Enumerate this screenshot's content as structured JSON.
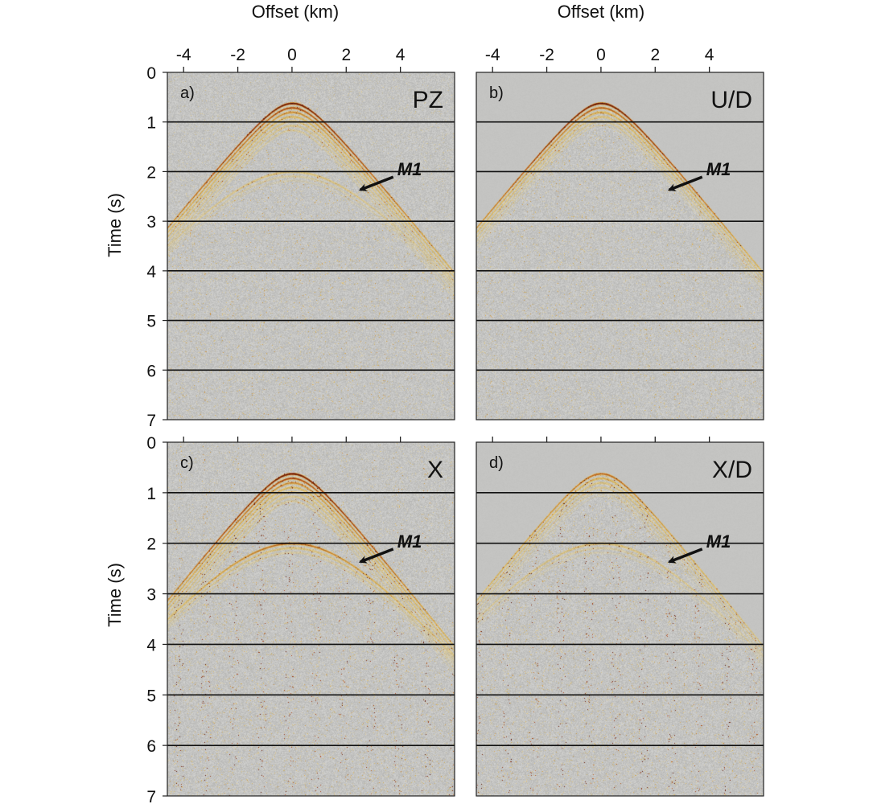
{
  "colors": {
    "background": "#c4c4c2",
    "wavelet_dark": "#5a1606",
    "wavelet_mid": "#a8431b",
    "wavelet_light": "#e0b13c",
    "wavelet_pale": "#f0d26a",
    "timing_lines": "#111111"
  },
  "chart_data": [
    {
      "type": "heatmap",
      "panel": "a)",
      "component": "PZ",
      "xlabel": "Offset (km)",
      "ylabel": "Time (s)",
      "x_ticks": [
        -4,
        -2,
        0,
        2,
        4
      ],
      "x_tick_labels": [
        "-4",
        "-2",
        "0",
        "2",
        "4"
      ],
      "y_ticks": [
        0,
        1,
        2,
        3,
        4,
        5,
        6,
        7
      ],
      "y_tick_labels": [
        "0",
        "1",
        "2",
        "3",
        "4",
        "5",
        "6",
        "7"
      ],
      "xlim": [
        -4.6,
        6.0
      ],
      "ylim": [
        7,
        0
      ],
      "x_axis_position": "top",
      "horizontal_lines_at": [
        1,
        2,
        3,
        4,
        5,
        6
      ],
      "events": [
        {
          "apex_offset": 0.0,
          "apex_time": 0.62,
          "velocity_km_s": 1.5,
          "strength": "strong"
        },
        {
          "apex_offset": 0.0,
          "apex_time": 2.0,
          "velocity_km_s": 1.6,
          "strength": "weak"
        }
      ],
      "annotation": {
        "text": "M1",
        "arrow_target": [
          2.4,
          2.4
        ]
      }
    },
    {
      "type": "heatmap",
      "panel": "b)",
      "component": "U/D",
      "xlabel": "Offset (km)",
      "ylabel": "",
      "x_ticks": [
        -4,
        -2,
        0,
        2,
        4
      ],
      "x_tick_labels": [
        "-4",
        "-2",
        "0",
        "2",
        "4"
      ],
      "xlim": [
        -4.6,
        6.0
      ],
      "ylim": [
        7,
        0
      ],
      "x_axis_position": "top",
      "horizontal_lines_at": [
        1,
        2,
        3,
        4,
        5,
        6
      ],
      "events": [
        {
          "apex_offset": 0.0,
          "apex_time": 0.62,
          "velocity_km_s": 1.5,
          "strength": "strong"
        }
      ],
      "annotation": {
        "text": "M1",
        "arrow_target": [
          2.4,
          2.4
        ]
      }
    },
    {
      "type": "heatmap",
      "panel": "c)",
      "component": "X",
      "xlabel": "",
      "ylabel": "Time (s)",
      "y_ticks": [
        0,
        1,
        2,
        3,
        4,
        5,
        6,
        7
      ],
      "y_tick_labels": [
        "0",
        "1",
        "2",
        "3",
        "4",
        "5",
        "6",
        "7"
      ],
      "xlim": [
        -4.6,
        6.0
      ],
      "ylim": [
        7,
        0
      ],
      "horizontal_lines_at": [
        1,
        2,
        3,
        4,
        5,
        6
      ],
      "events": [
        {
          "apex_offset": 0.0,
          "apex_time": 0.62,
          "velocity_km_s": 1.5,
          "strength": "strong"
        },
        {
          "apex_offset": 0.0,
          "apex_time": 2.0,
          "velocity_km_s": 1.6,
          "strength": "medium"
        }
      ],
      "annotation": {
        "text": "M1",
        "arrow_target": [
          2.4,
          2.4
        ]
      }
    },
    {
      "type": "heatmap",
      "panel": "d)",
      "component": "X/D",
      "xlabel": "",
      "ylabel": "",
      "xlim": [
        -4.6,
        6.0
      ],
      "ylim": [
        7,
        0
      ],
      "horizontal_lines_at": [
        1,
        2,
        3,
        4,
        5,
        6
      ],
      "events": [
        {
          "apex_offset": 0.0,
          "apex_time": 0.62,
          "velocity_km_s": 1.5,
          "strength": "medium"
        },
        {
          "apex_offset": 0.0,
          "apex_time": 2.0,
          "velocity_km_s": 1.6,
          "strength": "weak"
        }
      ],
      "annotation": {
        "text": "M1",
        "arrow_target": [
          2.4,
          2.4
        ]
      }
    }
  ]
}
